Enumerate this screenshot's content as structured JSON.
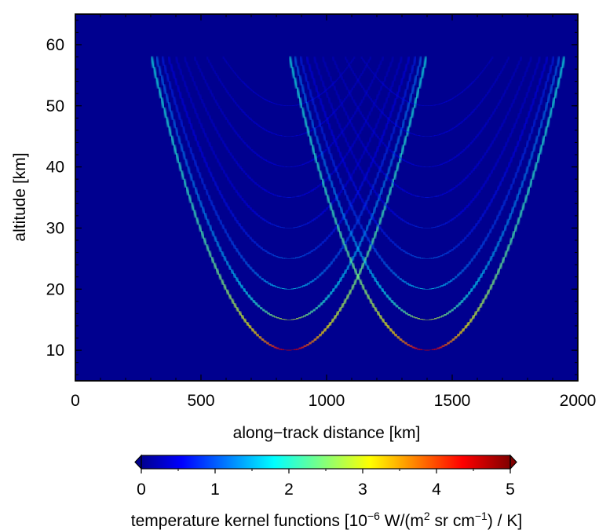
{
  "chart_data": {
    "type": "heatmap",
    "xlabel": "along−track distance [km]",
    "ylabel": "altitude [km]",
    "xlim": [
      0,
      2000
    ],
    "ylim": [
      5,
      65
    ],
    "x_ticks": [
      "0",
      "500",
      "1000",
      "1500",
      "2000"
    ],
    "x_tick_values": [
      0,
      500,
      1000,
      1500,
      2000
    ],
    "y_ticks": [
      "10",
      "20",
      "30",
      "40",
      "50",
      "60"
    ],
    "y_tick_values": [
      10,
      20,
      30,
      40,
      50,
      60
    ],
    "grid": false,
    "colormap": "jet",
    "background_color": "#00008f",
    "arc_centers_km": [
      850,
      1400
    ],
    "tangent_altitudes_km": [
      10,
      15,
      20,
      25,
      30,
      35,
      40,
      45,
      50
    ],
    "colorbar": {
      "label_prefix": "temperature kernel functions [10",
      "label_exp1": "−6",
      "label_mid1": " W/(m",
      "label_exp2": "2",
      "label_mid2": " sr cm",
      "label_exp3": "−1",
      "label_suffix": ") / K]",
      "range": [
        0,
        5
      ],
      "ticks": [
        "0",
        "1",
        "2",
        "3",
        "4",
        "5"
      ],
      "tick_values": [
        0,
        1,
        2,
        3,
        4,
        5
      ],
      "extend": "both"
    }
  }
}
